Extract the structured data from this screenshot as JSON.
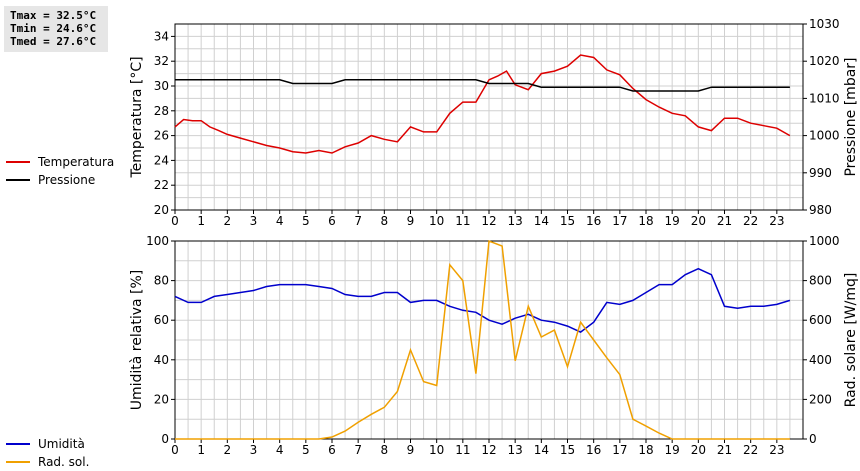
{
  "stats": {
    "tmax": "Tmax = 32.5°C",
    "tmin": "Tmin = 24.6°C",
    "tmed": "Tmed = 27.6°C"
  },
  "colors": {
    "temperature": "#dd0000",
    "pressure": "#000000",
    "humidity": "#0000cc",
    "radiation": "#f0a000",
    "grid": "#d0d0d0"
  },
  "chart_data": [
    {
      "type": "line",
      "ylabel": "Temperatura [°C]",
      "y2label": "Pressione [mbar]",
      "ylim": [
        20,
        35
      ],
      "y2lim": [
        980,
        1030
      ],
      "xlim": [
        0,
        24
      ],
      "xticks": [
        0,
        1,
        2,
        3,
        4,
        5,
        6,
        7,
        8,
        9,
        10,
        11,
        12,
        13,
        14,
        15,
        16,
        17,
        18,
        19,
        20,
        21,
        22,
        23
      ],
      "yticks": [
        20,
        22,
        24,
        26,
        28,
        30,
        32,
        34
      ],
      "y2ticks": [
        980,
        990,
        1000,
        1010,
        1020,
        1030
      ],
      "grid": true,
      "legend": [
        {
          "name": "Temperatura",
          "color": "#dd0000"
        },
        {
          "name": "Pressione",
          "color": "#000000"
        }
      ],
      "series": [
        {
          "name": "Temperatura",
          "axis": "left",
          "x": [
            0,
            0.33,
            0.67,
            1,
            1.33,
            1.67,
            2,
            2.5,
            3,
            3.5,
            4,
            4.5,
            5,
            5.5,
            6,
            6.5,
            7,
            7.5,
            8,
            8.5,
            9,
            9.5,
            10,
            10.5,
            11,
            11.5,
            12,
            12.33,
            12.67,
            13,
            13.5,
            14,
            14.5,
            15,
            15.5,
            16,
            16.5,
            17,
            17.5,
            18,
            18.5,
            19,
            19.5,
            20,
            20.5,
            21,
            21.5,
            22,
            22.5,
            23,
            23.5
          ],
          "y": [
            26.7,
            27.3,
            27.2,
            27.2,
            26.7,
            26.4,
            26.1,
            25.8,
            25.5,
            25.2,
            25.0,
            24.7,
            24.6,
            24.8,
            24.6,
            25.1,
            25.4,
            26.0,
            25.7,
            25.5,
            26.7,
            26.3,
            26.3,
            27.8,
            28.7,
            28.7,
            30.5,
            30.8,
            31.2,
            30.1,
            29.7,
            31.0,
            31.2,
            31.6,
            32.5,
            32.3,
            31.3,
            30.9,
            29.8,
            28.9,
            28.3,
            27.8,
            27.6,
            26.7,
            26.4,
            27.4,
            27.4,
            27.0,
            26.8,
            26.6,
            26.0
          ]
        },
        {
          "name": "Pressione",
          "axis": "right",
          "x": [
            0,
            4,
            4.5,
            5,
            6,
            6.5,
            7,
            8,
            9,
            10,
            11,
            11.5,
            12,
            13,
            13.5,
            14,
            15,
            16,
            17,
            17.5,
            18,
            19,
            20,
            20.5,
            21,
            22,
            23,
            23.5
          ],
          "y": [
            1015,
            1015,
            1014,
            1014,
            1014,
            1015,
            1015,
            1015,
            1015,
            1015,
            1015,
            1015,
            1014,
            1014,
            1014,
            1013,
            1013,
            1013,
            1013,
            1012,
            1012,
            1012,
            1012,
            1013,
            1013,
            1013,
            1013,
            1013
          ]
        }
      ]
    },
    {
      "type": "line",
      "ylabel": "Umidità relativa [%]",
      "y2label": "Rad. solare [W/mq]",
      "ylim": [
        0,
        100
      ],
      "y2lim": [
        0,
        1000
      ],
      "xlim": [
        0,
        24
      ],
      "xticks": [
        0,
        1,
        2,
        3,
        4,
        5,
        6,
        7,
        8,
        9,
        10,
        11,
        12,
        13,
        14,
        15,
        16,
        17,
        18,
        19,
        20,
        21,
        22,
        23
      ],
      "yticks": [
        0,
        20,
        40,
        60,
        80,
        100
      ],
      "y2ticks": [
        0,
        200,
        400,
        600,
        800,
        1000
      ],
      "grid": true,
      "legend": [
        {
          "name": "Umidità",
          "color": "#0000cc"
        },
        {
          "name": "Rad. sol.",
          "color": "#f0a000"
        }
      ],
      "series": [
        {
          "name": "Umidità",
          "axis": "left",
          "x": [
            0,
            0.5,
            1,
            1.5,
            2,
            2.5,
            3,
            3.5,
            4,
            4.5,
            5,
            5.5,
            6,
            6.5,
            7,
            7.5,
            8,
            8.5,
            9,
            9.5,
            10,
            10.5,
            11,
            11.5,
            12,
            12.5,
            13,
            13.5,
            14,
            14.5,
            15,
            15.5,
            16,
            16.5,
            17,
            17.5,
            18,
            18.5,
            19,
            19.5,
            20,
            20.5,
            21,
            21.5,
            22,
            22.5,
            23,
            23.5
          ],
          "y": [
            72,
            69,
            69,
            72,
            73,
            74,
            75,
            77,
            78,
            78,
            78,
            77,
            76,
            73,
            72,
            72,
            74,
            74,
            69,
            70,
            70,
            67,
            65,
            64,
            60,
            58,
            61,
            63,
            60,
            59,
            57,
            54,
            59,
            69,
            68,
            70,
            74,
            78,
            78,
            83,
            86,
            83,
            67,
            66,
            67,
            67,
            68,
            70
          ]
        },
        {
          "name": "Rad. sol.",
          "axis": "right",
          "x": [
            0,
            1,
            2,
            3,
            4,
            5,
            5.5,
            6,
            6.5,
            7,
            7.5,
            8,
            8.5,
            9,
            9.5,
            10,
            10.5,
            11,
            11.5,
            12,
            12.5,
            13,
            13.5,
            14,
            14.5,
            15,
            15.5,
            16,
            16.5,
            17,
            17.5,
            18,
            18.5,
            19,
            20,
            21,
            22,
            23,
            23.5
          ],
          "y": [
            0,
            0,
            0,
            0,
            0,
            0,
            0,
            10,
            40,
            85,
            125,
            160,
            240,
            450,
            290,
            270,
            880,
            800,
            330,
            1000,
            975,
            395,
            670,
            515,
            550,
            365,
            590,
            500,
            410,
            325,
            100,
            65,
            30,
            0,
            0,
            0,
            0,
            0,
            0
          ]
        }
      ]
    }
  ]
}
